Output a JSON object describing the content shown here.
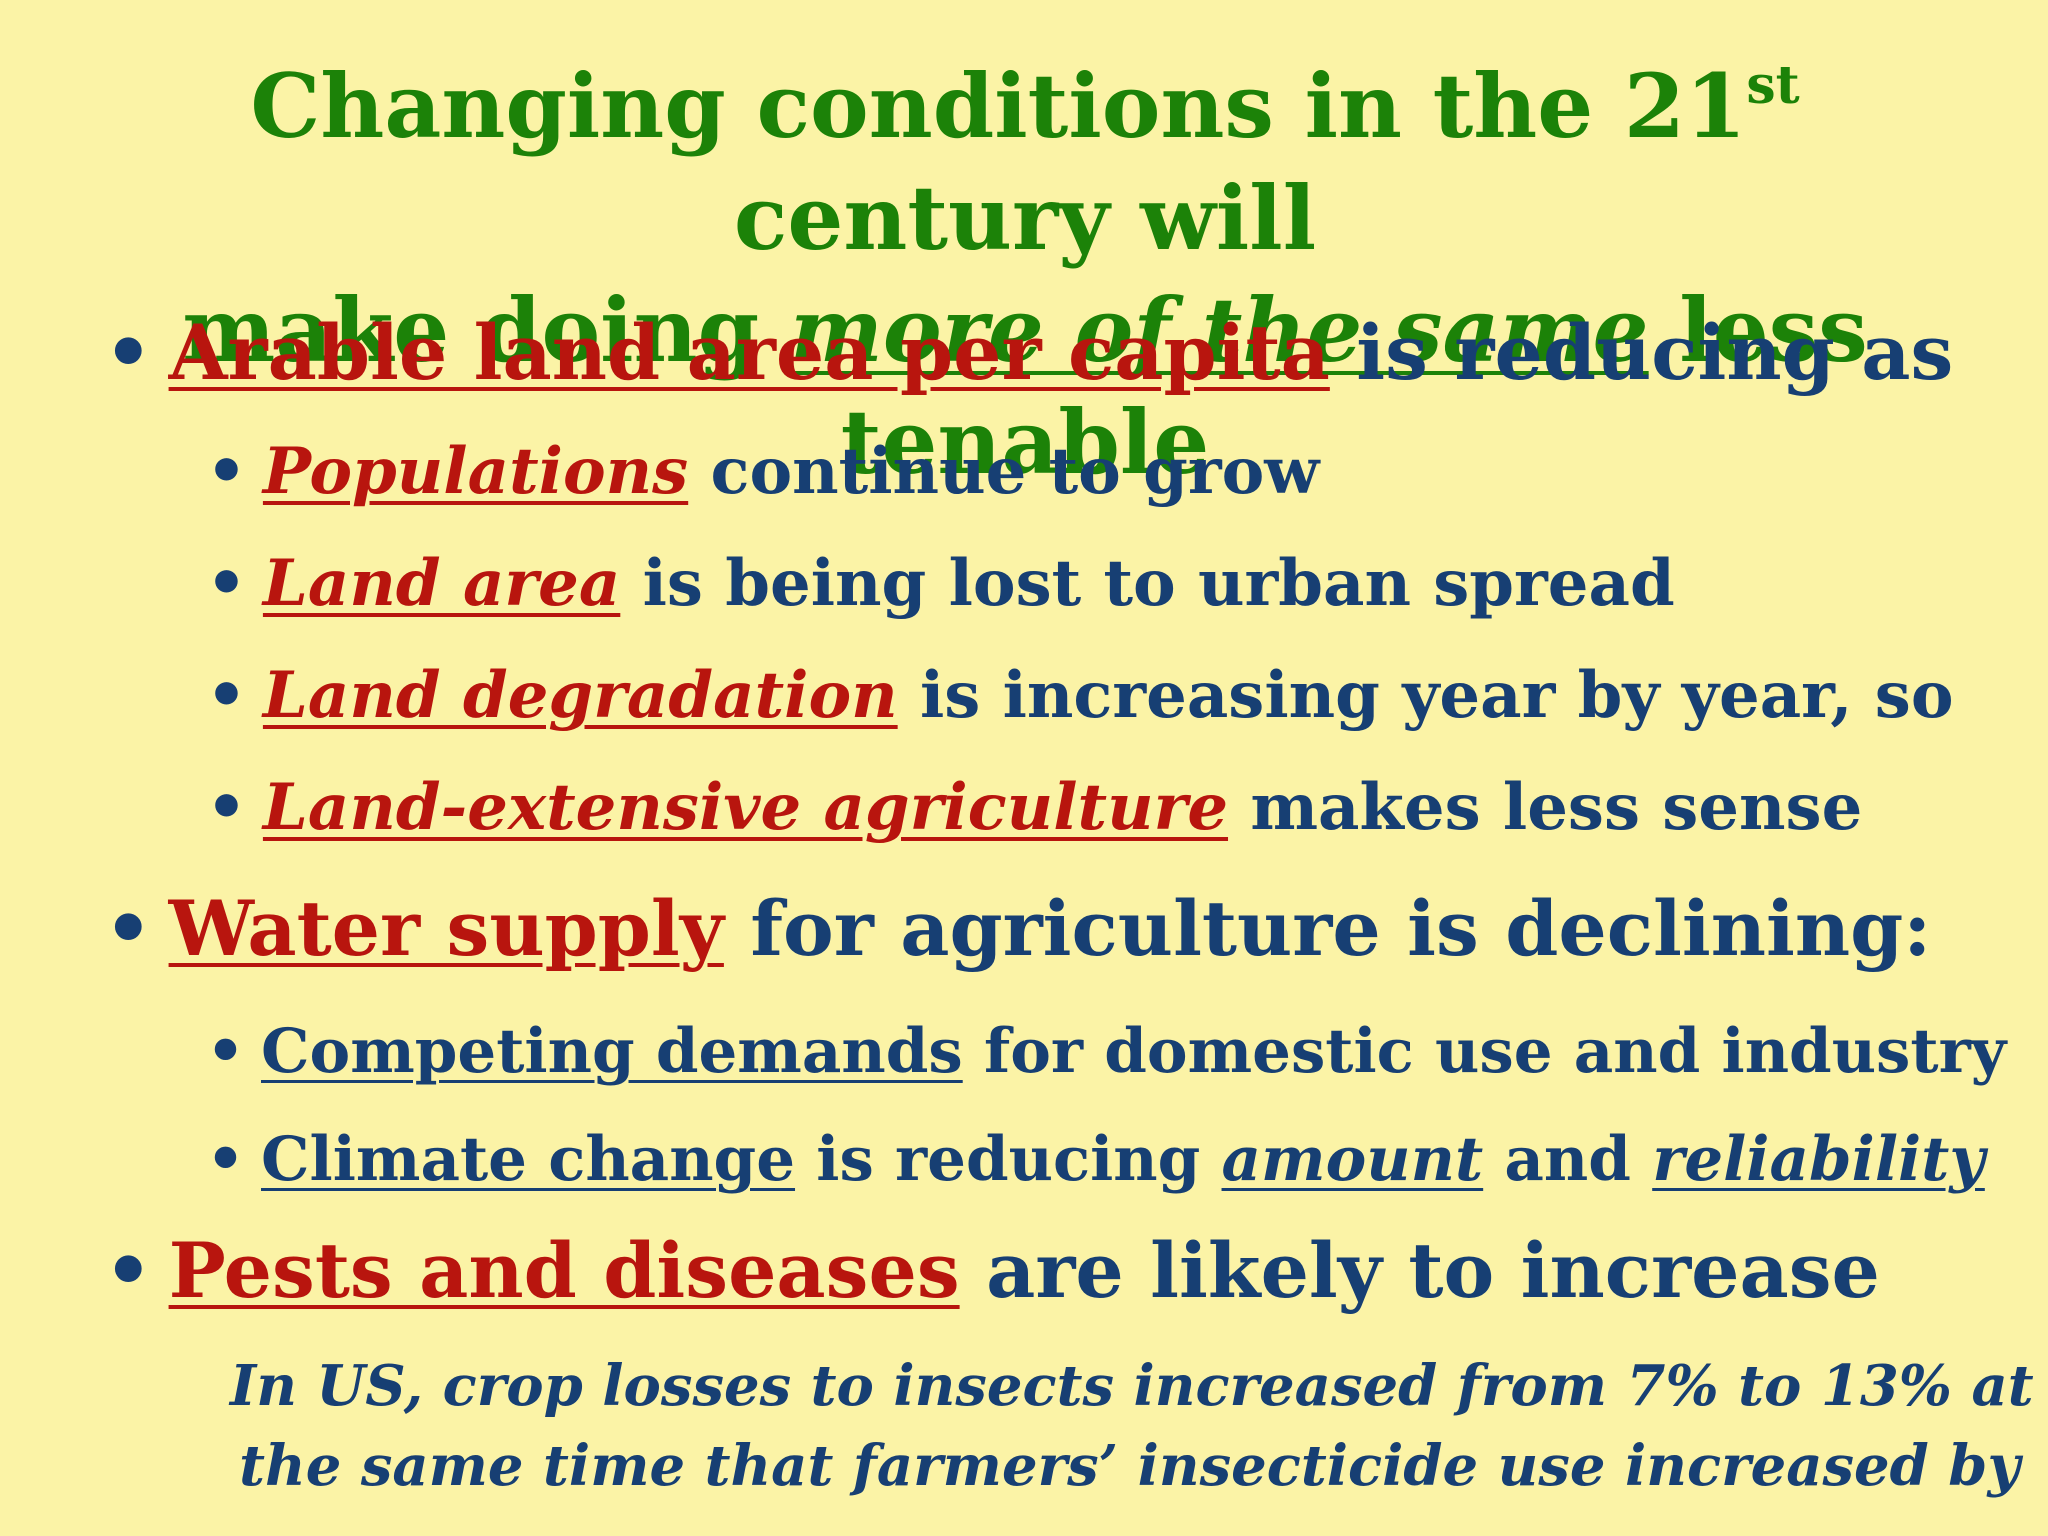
{
  "title": {
    "line1_a": "Changing conditions in the 21",
    "line1_sup": "st",
    "line1_b": " century will",
    "line2_a": "make doing ",
    "line2_em": "more of the same",
    "line2_b": " less tenable"
  },
  "bullet_glyph": "•",
  "bullets": [
    {
      "key": "Arable land area per capita",
      "rest": " is reducing as"
    },
    {
      "key": "Populations",
      "rest": " continue to grow"
    },
    {
      "key": "Land area",
      "rest": " is being lost to urban spread"
    },
    {
      "key": "Land degradation",
      "rest": " is increasing year by year, so"
    },
    {
      "key": "Land-extensive agriculture",
      "rest": " makes less sense"
    },
    {
      "key": "Water supply",
      "rest": " for agriculture is declining:"
    },
    {
      "key": "Competing demands",
      "rest": " for domestic use and industry"
    },
    {
      "key": "Climate change",
      "mid1": " is reducing ",
      "em1": "amount",
      "mid2": " and ",
      "em2": "reliability"
    },
    {
      "key": "Pests and diseases",
      "rest": " are likely to increase"
    }
  ],
  "note": {
    "line1": "In US, crop losses to insects increased from 7% to 13% at",
    "line2": "the same time that farmers’ insecticide use increased by"
  }
}
